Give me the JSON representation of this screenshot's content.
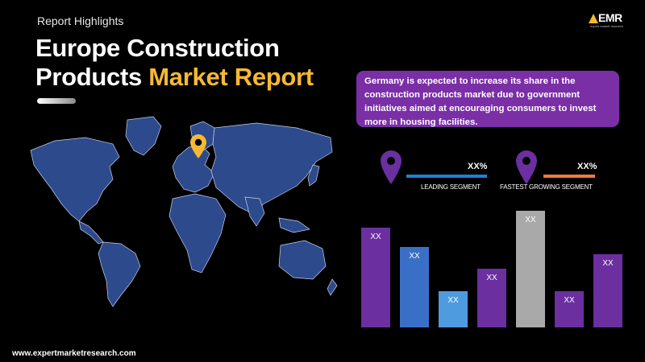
{
  "header": {
    "eyebrow": "Report Highlights",
    "title_line1": "Europe Construction",
    "title_line2_plain": "Products ",
    "title_line2_accent": "Market Report"
  },
  "logo": {
    "text": "EMR",
    "tagline": "expert market research"
  },
  "callout": {
    "text": "Germany is expected to increase its share in the construction products market due to government initiatives  aimed at encouraging consumers to invest more in housing facilities."
  },
  "kpis": [
    {
      "value": "XX%",
      "label": "LEADING SEGMENT",
      "color": "#1f7fd6"
    },
    {
      "value": "XX%",
      "label": "FASTEST GROWING SEGMENT",
      "color": "#f07a3a"
    }
  ],
  "icons": {
    "map_marker": "location-pin-icon",
    "kpi_marker": "location-pin-icon"
  },
  "chart_data": {
    "type": "bar",
    "categories": [
      "",
      "",
      "",
      "",
      "",
      "",
      ""
    ],
    "values": [
      122,
      99,
      44,
      72,
      143,
      44,
      90
    ],
    "ylim": [
      0,
      150
    ],
    "labels": [
      "XX",
      "XX",
      "XX",
      "XX",
      "XX",
      "XX",
      "XX"
    ],
    "colors": [
      "#6b2fa0",
      "#3a6fc8",
      "#4f9be0",
      "#6b2fa0",
      "#a9a9a9",
      "#6b2fa0",
      "#6b2fa0"
    ],
    "grid": false
  },
  "footer": {
    "url": "www.expertmarketresearch.com"
  }
}
